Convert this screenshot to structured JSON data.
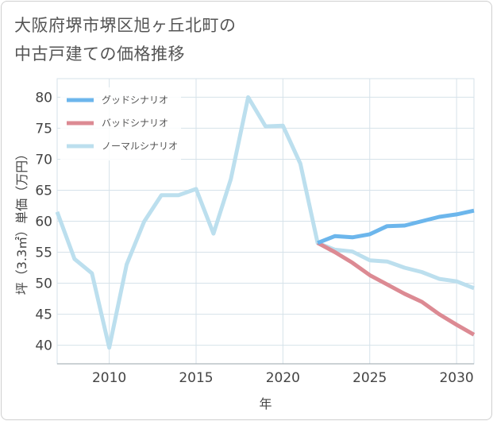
{
  "title": {
    "line1": "大阪府堺市堺区旭ヶ丘北町の",
    "line2": "中古戸建ての価格推移"
  },
  "chart_data": {
    "type": "line",
    "title": "大阪府堺市堺区旭ヶ丘北町の中古戸建ての価格推移",
    "xlabel": "年",
    "ylabel": "坪（3.3㎡）単価（万円）",
    "xlim": [
      2007,
      2031
    ],
    "ylim": [
      37,
      83
    ],
    "xticks": [
      2010,
      2015,
      2020,
      2025,
      2030
    ],
    "yticks": [
      40,
      45,
      50,
      55,
      60,
      65,
      70,
      75,
      80
    ],
    "grid": true,
    "legend_position": "top-left",
    "series": [
      {
        "name": "グッドシナリオ",
        "color": "#6cb6ec",
        "x": [
          2022,
          2023,
          2024,
          2025,
          2026,
          2027,
          2028,
          2029,
          2030,
          2031
        ],
        "values": [
          56.5,
          57.6,
          57.4,
          57.9,
          59.2,
          59.3,
          60.0,
          60.7,
          61.1,
          61.7
        ]
      },
      {
        "name": "バッドシナリオ",
        "color": "#dc8a93",
        "x": [
          2022,
          2023,
          2024,
          2025,
          2026,
          2027,
          2028,
          2029,
          2030,
          2031
        ],
        "values": [
          56.5,
          55.0,
          53.3,
          51.3,
          49.8,
          48.3,
          47.0,
          45.0,
          43.3,
          41.7
        ]
      },
      {
        "name": "ノーマルシナリオ",
        "color": "#bcdfee",
        "x": [
          2007,
          2008,
          2009,
          2010,
          2011,
          2012,
          2013,
          2014,
          2015,
          2016,
          2017,
          2018,
          2019,
          2020,
          2021,
          2022,
          2023,
          2024,
          2025,
          2026,
          2027,
          2028,
          2029,
          2030,
          2031
        ],
        "values": [
          61.5,
          53.9,
          51.6,
          39.6,
          53.0,
          59.9,
          64.2,
          64.2,
          65.2,
          58.0,
          66.8,
          80.0,
          75.3,
          75.4,
          69.3,
          56.5,
          55.4,
          55.1,
          53.7,
          53.5,
          52.5,
          51.8,
          50.7,
          50.3,
          49.2
        ]
      }
    ]
  }
}
